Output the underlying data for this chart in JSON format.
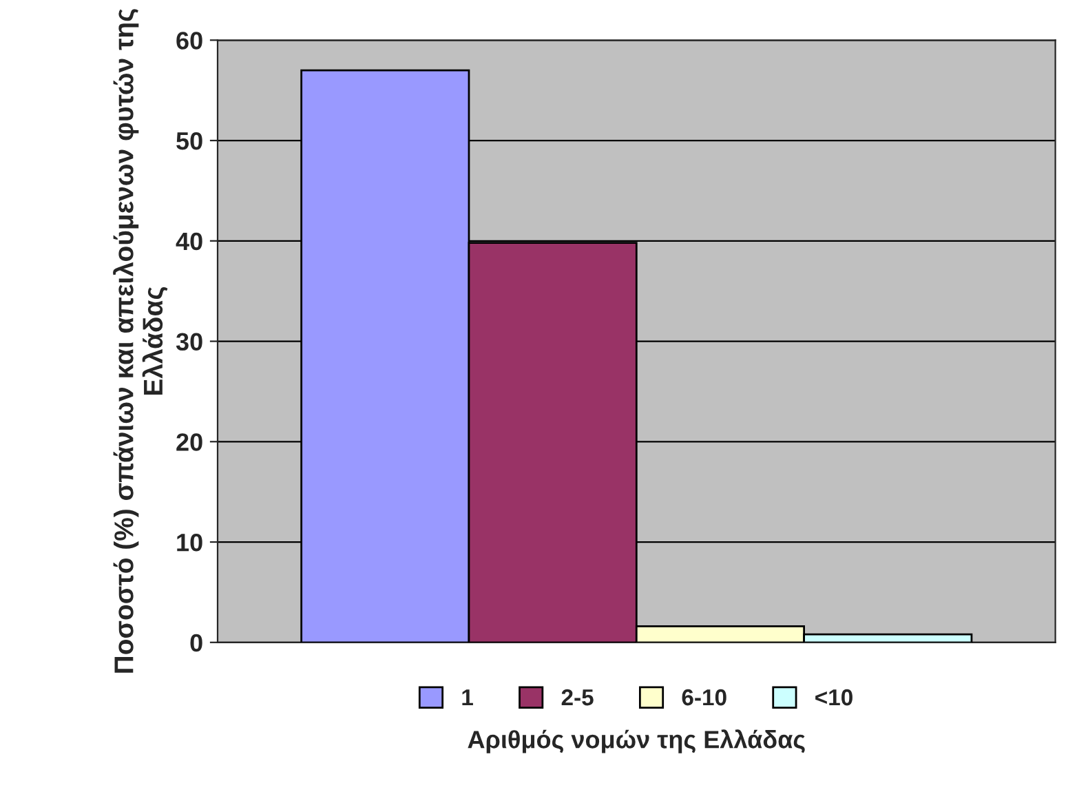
{
  "chart_data": {
    "type": "bar",
    "xlabel": "Αριθμός νομών της Ελλάδας",
    "ylabel": "Ποσοστό (%) σπάνιων και απειλούμενων φυτών της Ελλάδας",
    "categories": [
      null
    ],
    "series": [
      {
        "name": "1",
        "color": "#9999ff",
        "values": [
          57
        ]
      },
      {
        "name": "2-5",
        "color": "#993366",
        "values": [
          39.8
        ]
      },
      {
        "name": "6-10",
        "color": "#ffffcc",
        "values": [
          1.6
        ]
      },
      {
        "name": "<10",
        "color": "#ccffff",
        "values": [
          0.8
        ]
      }
    ],
    "ylim": [
      0,
      60
    ],
    "yticks": [
      0,
      10,
      20,
      30,
      40,
      50,
      60
    ],
    "grid": "y",
    "legend": "bottom"
  }
}
